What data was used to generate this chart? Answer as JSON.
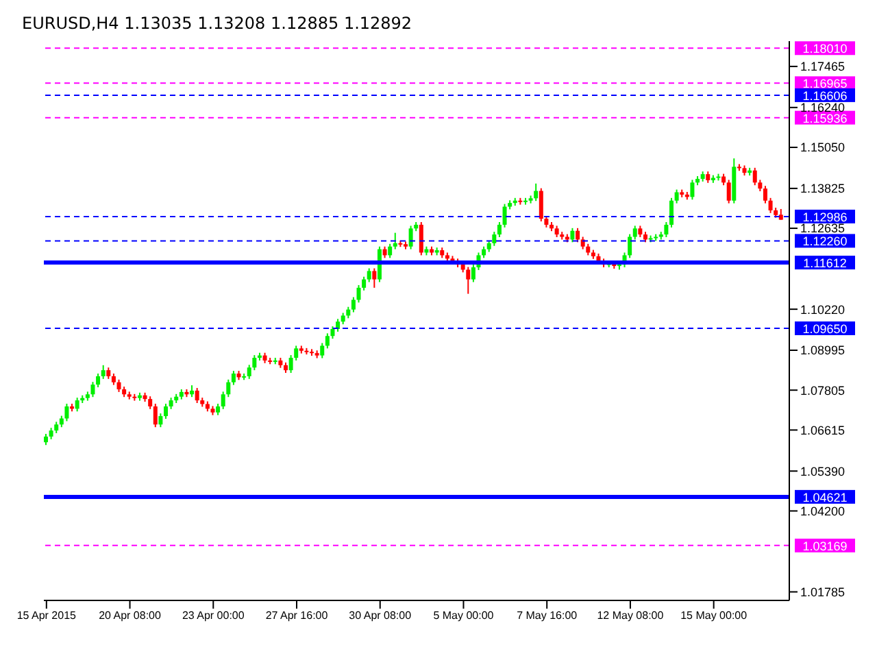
{
  "chart_data": {
    "type": "candlestick",
    "title": "EURUSD,H4  1.13035 1.13208 1.12885 1.12892",
    "categories": [
      "15 Apr 2015",
      null,
      null,
      null,
      null,
      null,
      null,
      null,
      null,
      null,
      null,
      null,
      null,
      null,
      null,
      null,
      "20 Apr 08:00",
      null,
      null,
      null,
      null,
      null,
      null,
      null,
      null,
      null,
      null,
      null,
      null,
      null,
      null,
      null,
      "23 Apr 00:00",
      null,
      null,
      null,
      null,
      null,
      null,
      null,
      null,
      null,
      null,
      null,
      null,
      null,
      null,
      null,
      "27 Apr 16:00",
      null,
      null,
      null,
      null,
      null,
      null,
      null,
      null,
      null,
      null,
      null,
      null,
      null,
      null,
      null,
      "30 Apr 08:00",
      null,
      null,
      null,
      null,
      null,
      null,
      null,
      null,
      null,
      null,
      null,
      null,
      null,
      null,
      null,
      "5 May 00:00",
      null,
      null,
      null,
      null,
      null,
      null,
      null,
      null,
      null,
      null,
      null,
      null,
      null,
      null,
      null,
      "7 May 16:00",
      null,
      null,
      null,
      null,
      null,
      null,
      null,
      null,
      null,
      null,
      null,
      null,
      null,
      null,
      null,
      "12 May 08:00",
      null,
      null,
      null,
      null,
      null,
      null,
      null,
      null,
      null,
      null,
      null,
      null,
      null,
      null,
      null,
      "15 May 00:00",
      null,
      null,
      null,
      null,
      null,
      null,
      null,
      null,
      null,
      null,
      null,
      null,
      null
    ],
    "ohlc": [
      [
        1.0625,
        1.065,
        1.0617,
        1.0642
      ],
      [
        1.0642,
        1.0668,
        1.0634,
        1.066
      ],
      [
        1.066,
        1.0686,
        1.0652,
        1.0678
      ],
      [
        1.0678,
        1.0704,
        1.067,
        1.0696
      ],
      [
        1.0696,
        1.074,
        1.0688,
        1.0732
      ],
      [
        1.0732,
        1.074,
        1.0717,
        1.0725
      ],
      [
        1.0725,
        1.0758,
        1.0717,
        1.075
      ],
      [
        1.075,
        1.0765,
        1.0742,
        1.0757
      ],
      [
        1.0757,
        1.0776,
        1.0749,
        1.0768
      ],
      [
        1.0768,
        1.0805,
        1.076,
        1.0797
      ],
      [
        1.0797,
        1.083,
        1.0789,
        1.0822
      ],
      [
        1.0822,
        1.0855,
        1.0814,
        1.084
      ],
      [
        1.084,
        1.0848,
        1.0814,
        1.0822
      ],
      [
        1.0822,
        1.083,
        1.0796,
        1.0804
      ],
      [
        1.0804,
        1.0812,
        1.0775,
        1.0783
      ],
      [
        1.0783,
        1.0791,
        1.076,
        1.0768
      ],
      [
        1.0768,
        1.0776,
        1.0753,
        1.0761
      ],
      [
        1.0761,
        1.0769,
        1.0749,
        1.0757
      ],
      [
        1.0757,
        1.0773,
        1.0749,
        1.0765
      ],
      [
        1.0765,
        1.0773,
        1.0746,
        1.0754
      ],
      [
        1.0754,
        1.0762,
        1.0724,
        1.0732
      ],
      [
        1.0732,
        1.074,
        1.067,
        1.0678
      ],
      [
        1.0678,
        1.0711,
        1.067,
        1.0703
      ],
      [
        1.0703,
        1.074,
        1.0695,
        1.0732
      ],
      [
        1.0732,
        1.0758,
        1.0724,
        1.075
      ],
      [
        1.075,
        1.0769,
        1.0742,
        1.0761
      ],
      [
        1.0761,
        1.0783,
        1.0753,
        1.0775
      ],
      [
        1.0775,
        1.0783,
        1.076,
        1.0768
      ],
      [
        1.0768,
        1.0795,
        1.076,
        1.0779
      ],
      [
        1.0779,
        1.0787,
        1.0742,
        1.075
      ],
      [
        1.075,
        1.0758,
        1.0731,
        1.0739
      ],
      [
        1.0739,
        1.0747,
        1.0717,
        1.0725
      ],
      [
        1.0725,
        1.0733,
        1.0706,
        1.0714
      ],
      [
        1.0714,
        1.074,
        1.0706,
        1.0732
      ],
      [
        1.0732,
        1.0776,
        1.0724,
        1.0768
      ],
      [
        1.0768,
        1.0812,
        1.076,
        1.0804
      ],
      [
        1.0804,
        1.0838,
        1.0796,
        1.083
      ],
      [
        1.083,
        1.0838,
        1.0811,
        1.0819
      ],
      [
        1.0819,
        1.083,
        1.0811,
        1.0822
      ],
      [
        1.0822,
        1.0856,
        1.0814,
        1.0848
      ],
      [
        1.0848,
        1.0885,
        1.084,
        1.0877
      ],
      [
        1.0877,
        1.0892,
        1.0869,
        1.0884
      ],
      [
        1.0884,
        1.0892,
        1.0861,
        1.0869
      ],
      [
        1.0869,
        1.0877,
        1.0858,
        1.0866
      ],
      [
        1.0866,
        1.0877,
        1.0858,
        1.0869
      ],
      [
        1.0869,
        1.0877,
        1.0847,
        1.0855
      ],
      [
        1.0855,
        1.0863,
        1.0832,
        1.084
      ],
      [
        1.084,
        1.0885,
        1.0832,
        1.0877
      ],
      [
        1.0877,
        1.0913,
        1.0869,
        1.0905
      ],
      [
        1.0905,
        1.0913,
        1.089,
        1.0898
      ],
      [
        1.0898,
        1.0906,
        1.0887,
        1.0895
      ],
      [
        1.0895,
        1.0903,
        1.0883,
        1.0891
      ],
      [
        1.0891,
        1.0899,
        1.0876,
        1.0884
      ],
      [
        1.0884,
        1.0921,
        1.0876,
        1.0913
      ],
      [
        1.0913,
        1.095,
        1.0905,
        1.0942
      ],
      [
        1.0942,
        1.0971,
        1.0934,
        1.0963
      ],
      [
        1.0963,
        1.0993,
        1.0955,
        1.0985
      ],
      [
        1.0985,
        1.1011,
        1.0977,
        1.1003
      ],
      [
        1.1003,
        1.1029,
        1.0995,
        1.1021
      ],
      [
        1.1021,
        1.1058,
        1.1013,
        1.105
      ],
      [
        1.105,
        1.1094,
        1.1042,
        1.1086
      ],
      [
        1.1086,
        1.1119,
        1.1078,
        1.1111
      ],
      [
        1.1111,
        1.1144,
        1.1103,
        1.1136
      ],
      [
        1.1136,
        1.1144,
        1.1086,
        1.1111
      ],
      [
        1.1111,
        1.1209,
        1.1103,
        1.1201
      ],
      [
        1.1201,
        1.1209,
        1.1175,
        1.1183
      ],
      [
        1.1183,
        1.1217,
        1.1175,
        1.1209
      ],
      [
        1.1209,
        1.125,
        1.1201,
        1.1219
      ],
      [
        1.1219,
        1.1227,
        1.1208,
        1.1216
      ],
      [
        1.1216,
        1.1224,
        1.1201,
        1.1209
      ],
      [
        1.1209,
        1.1271,
        1.1201,
        1.1263
      ],
      [
        1.1263,
        1.1282,
        1.1255,
        1.1274
      ],
      [
        1.1274,
        1.1282,
        1.1183,
        1.1191
      ],
      [
        1.1191,
        1.1209,
        1.1183,
        1.1201
      ],
      [
        1.1201,
        1.1209,
        1.1183,
        1.1191
      ],
      [
        1.1191,
        1.1206,
        1.1183,
        1.1198
      ],
      [
        1.1198,
        1.1206,
        1.1175,
        1.1183
      ],
      [
        1.1183,
        1.1191,
        1.1165,
        1.1173
      ],
      [
        1.1173,
        1.1181,
        1.1157,
        1.1165
      ],
      [
        1.1165,
        1.1173,
        1.1147,
        1.1155
      ],
      [
        1.1155,
        1.1163,
        1.1132,
        1.114
      ],
      [
        1.114,
        1.1148,
        1.1068,
        1.1111
      ],
      [
        1.1111,
        1.1155,
        1.1103,
        1.1147
      ],
      [
        1.1147,
        1.1191,
        1.1139,
        1.1183
      ],
      [
        1.1183,
        1.1209,
        1.1175,
        1.1201
      ],
      [
        1.1201,
        1.1227,
        1.1193,
        1.1219
      ],
      [
        1.1219,
        1.1253,
        1.1211,
        1.1245
      ],
      [
        1.1245,
        1.1282,
        1.1237,
        1.1274
      ],
      [
        1.1274,
        1.1336,
        1.1266,
        1.1328
      ],
      [
        1.1328,
        1.1347,
        1.132,
        1.1339
      ],
      [
        1.1339,
        1.1354,
        1.1331,
        1.1346
      ],
      [
        1.1346,
        1.1354,
        1.1334,
        1.1342
      ],
      [
        1.1342,
        1.1354,
        1.1334,
        1.1346
      ],
      [
        1.1346,
        1.1361,
        1.1338,
        1.1353
      ],
      [
        1.1353,
        1.1397,
        1.1345,
        1.1375
      ],
      [
        1.1375,
        1.1383,
        1.1284,
        1.1292
      ],
      [
        1.1292,
        1.13,
        1.1266,
        1.1274
      ],
      [
        1.1274,
        1.1282,
        1.1255,
        1.1263
      ],
      [
        1.1263,
        1.1271,
        1.1237,
        1.1245
      ],
      [
        1.1245,
        1.1253,
        1.123,
        1.1238
      ],
      [
        1.1238,
        1.1246,
        1.1222,
        1.123
      ],
      [
        1.123,
        1.1264,
        1.1222,
        1.1256
      ],
      [
        1.1256,
        1.1264,
        1.1222,
        1.123
      ],
      [
        1.123,
        1.1238,
        1.1201,
        1.1209
      ],
      [
        1.1209,
        1.1217,
        1.1183,
        1.1191
      ],
      [
        1.1191,
        1.1199,
        1.1172,
        1.118
      ],
      [
        1.118,
        1.1188,
        1.1157,
        1.1165
      ],
      [
        1.1165,
        1.1173,
        1.1147,
        1.1155
      ],
      [
        1.1155,
        1.1166,
        1.1147,
        1.1158
      ],
      [
        1.1158,
        1.1166,
        1.1143,
        1.1151
      ],
      [
        1.1151,
        1.1163,
        1.114,
        1.1155
      ],
      [
        1.1155,
        1.1191,
        1.1147,
        1.1183
      ],
      [
        1.1183,
        1.1246,
        1.1175,
        1.1238
      ],
      [
        1.1238,
        1.1271,
        1.123,
        1.1263
      ],
      [
        1.1263,
        1.1271,
        1.1237,
        1.1245
      ],
      [
        1.1245,
        1.1253,
        1.1222,
        1.123
      ],
      [
        1.123,
        1.1242,
        1.1222,
        1.1234
      ],
      [
        1.1234,
        1.1246,
        1.1226,
        1.1238
      ],
      [
        1.1238,
        1.1253,
        1.123,
        1.1245
      ],
      [
        1.1245,
        1.1282,
        1.1237,
        1.1274
      ],
      [
        1.1274,
        1.1354,
        1.1266,
        1.1346
      ],
      [
        1.1346,
        1.1379,
        1.1338,
        1.1371
      ],
      [
        1.1371,
        1.1379,
        1.1356,
        1.1364
      ],
      [
        1.1364,
        1.1372,
        1.1349,
        1.1357
      ],
      [
        1.1357,
        1.1408,
        1.1349,
        1.14
      ],
      [
        1.14,
        1.1419,
        1.1392,
        1.1411
      ],
      [
        1.1411,
        1.1433,
        1.1403,
        1.1425
      ],
      [
        1.1425,
        1.1433,
        1.1399,
        1.1407
      ],
      [
        1.1407,
        1.1422,
        1.1399,
        1.1414
      ],
      [
        1.1414,
        1.1426,
        1.1406,
        1.1418
      ],
      [
        1.1418,
        1.1426,
        1.1392,
        1.14
      ],
      [
        1.14,
        1.1408,
        1.1338,
        1.1346
      ],
      [
        1.1346,
        1.1472,
        1.1338,
        1.1447
      ],
      [
        1.1447,
        1.1455,
        1.1435,
        1.1443
      ],
      [
        1.1443,
        1.1451,
        1.1421,
        1.1429
      ],
      [
        1.1429,
        1.1444,
        1.1421,
        1.1436
      ],
      [
        1.1436,
        1.1444,
        1.1392,
        1.14
      ],
      [
        1.14,
        1.1408,
        1.1374,
        1.1382
      ],
      [
        1.1382,
        1.139,
        1.1338,
        1.1346
      ],
      [
        1.1346,
        1.1354,
        1.1309,
        1.1317
      ],
      [
        1.1317,
        1.1325,
        1.1295,
        1.1303
      ],
      [
        1.1304,
        1.1321,
        1.1289,
        1.1289
      ]
    ],
    "ylim": [
      1.0153,
      1.1822
    ],
    "yticks": [
      1.17465,
      {
        "value": 1.1624,
        "label": "1.16240"
      },
      {
        "value": 1.1505,
        "label": "1.15050"
      },
      1.13825,
      1.12635,
      {
        "value": 1.1022,
        "label": "1.10220"
      },
      1.08995,
      1.07805,
      1.06615,
      {
        "value": 1.0539,
        "label": "1.05390"
      },
      {
        "value": 1.042,
        "label": "1.04200"
      },
      1.01785
    ],
    "ref_lines": [
      {
        "axis": "y",
        "value": 1.1801,
        "label": "1.18010",
        "color": "#ff00ff",
        "line_style": "dashed"
      },
      {
        "axis": "y",
        "value": 1.16965,
        "label": "1.16965",
        "color": "#ff00ff",
        "line_style": "dashed"
      },
      {
        "axis": "y",
        "value": 1.16606,
        "label": "1.16606",
        "color": "#0000ff",
        "line_style": "dashed"
      },
      {
        "axis": "y",
        "value": 1.15936,
        "label": "1.15936",
        "color": "#ff00ff",
        "line_style": "dashed"
      },
      {
        "axis": "y",
        "value": 1.12986,
        "label": "1.12986",
        "color": "#0000ff",
        "line_style": "dashed"
      },
      {
        "axis": "y",
        "value": 1.1226,
        "label": "1.12260",
        "color": "#0000ff",
        "line_style": "dashed"
      },
      {
        "axis": "y",
        "value": 1.11612,
        "label": "1.11612",
        "color": "#0000ff",
        "line_style": "solid"
      },
      {
        "axis": "y",
        "value": 1.0965,
        "label": "1.09650",
        "color": "#0000ff",
        "line_style": "dashed"
      },
      {
        "axis": "y",
        "value": 1.04621,
        "label": "1.04621",
        "color": "#0000ff",
        "line_style": "solid"
      },
      {
        "axis": "y",
        "value": 1.03169,
        "label": "1.03169",
        "color": "#ff00ff",
        "line_style": "dashed"
      }
    ]
  }
}
